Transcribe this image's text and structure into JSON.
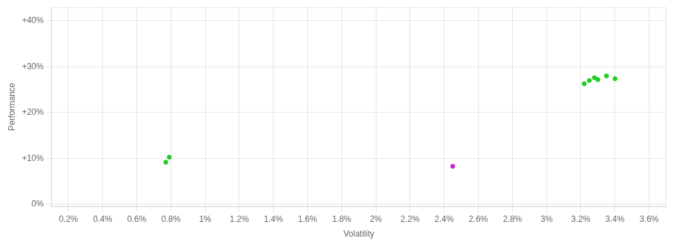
{
  "chart_data": {
    "type": "scatter",
    "xlabel": "Volatility",
    "ylabel": "Performance",
    "xlim": [
      0.001,
      0.037
    ],
    "ylim": [
      -0.005,
      0.43
    ],
    "xticks": [
      {
        "value": 0.002,
        "label": "0.2%"
      },
      {
        "value": 0.004,
        "label": "0.4%"
      },
      {
        "value": 0.006,
        "label": "0.6%"
      },
      {
        "value": 0.008,
        "label": "0.8%"
      },
      {
        "value": 0.01,
        "label": "1%"
      },
      {
        "value": 0.012,
        "label": "1.2%"
      },
      {
        "value": 0.014,
        "label": "1.4%"
      },
      {
        "value": 0.016,
        "label": "1.6%"
      },
      {
        "value": 0.018,
        "label": "1.8%"
      },
      {
        "value": 0.02,
        "label": "2%"
      },
      {
        "value": 0.022,
        "label": "2.2%"
      },
      {
        "value": 0.024,
        "label": "2.4%"
      },
      {
        "value": 0.026,
        "label": "2.6%"
      },
      {
        "value": 0.028,
        "label": "2.8%"
      },
      {
        "value": 0.03,
        "label": "3%"
      },
      {
        "value": 0.032,
        "label": "3.2%"
      },
      {
        "value": 0.034,
        "label": "3.4%"
      },
      {
        "value": 0.036,
        "label": "3.6%"
      }
    ],
    "yticks": [
      {
        "value": 0.0,
        "label": "0%"
      },
      {
        "value": 0.1,
        "label": "+10%"
      },
      {
        "value": 0.2,
        "label": "+20%"
      },
      {
        "value": 0.3,
        "label": "+30%"
      },
      {
        "value": 0.4,
        "label": "+40%"
      }
    ],
    "grid": true,
    "series": [
      {
        "color": "#22cc22",
        "x": [
          0.0079,
          0.0077,
          0.0322,
          0.0325,
          0.0328,
          0.033,
          0.0335,
          0.034
        ],
        "values": [
          0.103,
          0.092,
          0.263,
          0.27,
          0.276,
          0.272,
          0.28,
          0.274
        ]
      },
      {
        "color": "#cc22cc",
        "x": [
          0.0245
        ],
        "values": [
          0.083
        ]
      }
    ]
  }
}
